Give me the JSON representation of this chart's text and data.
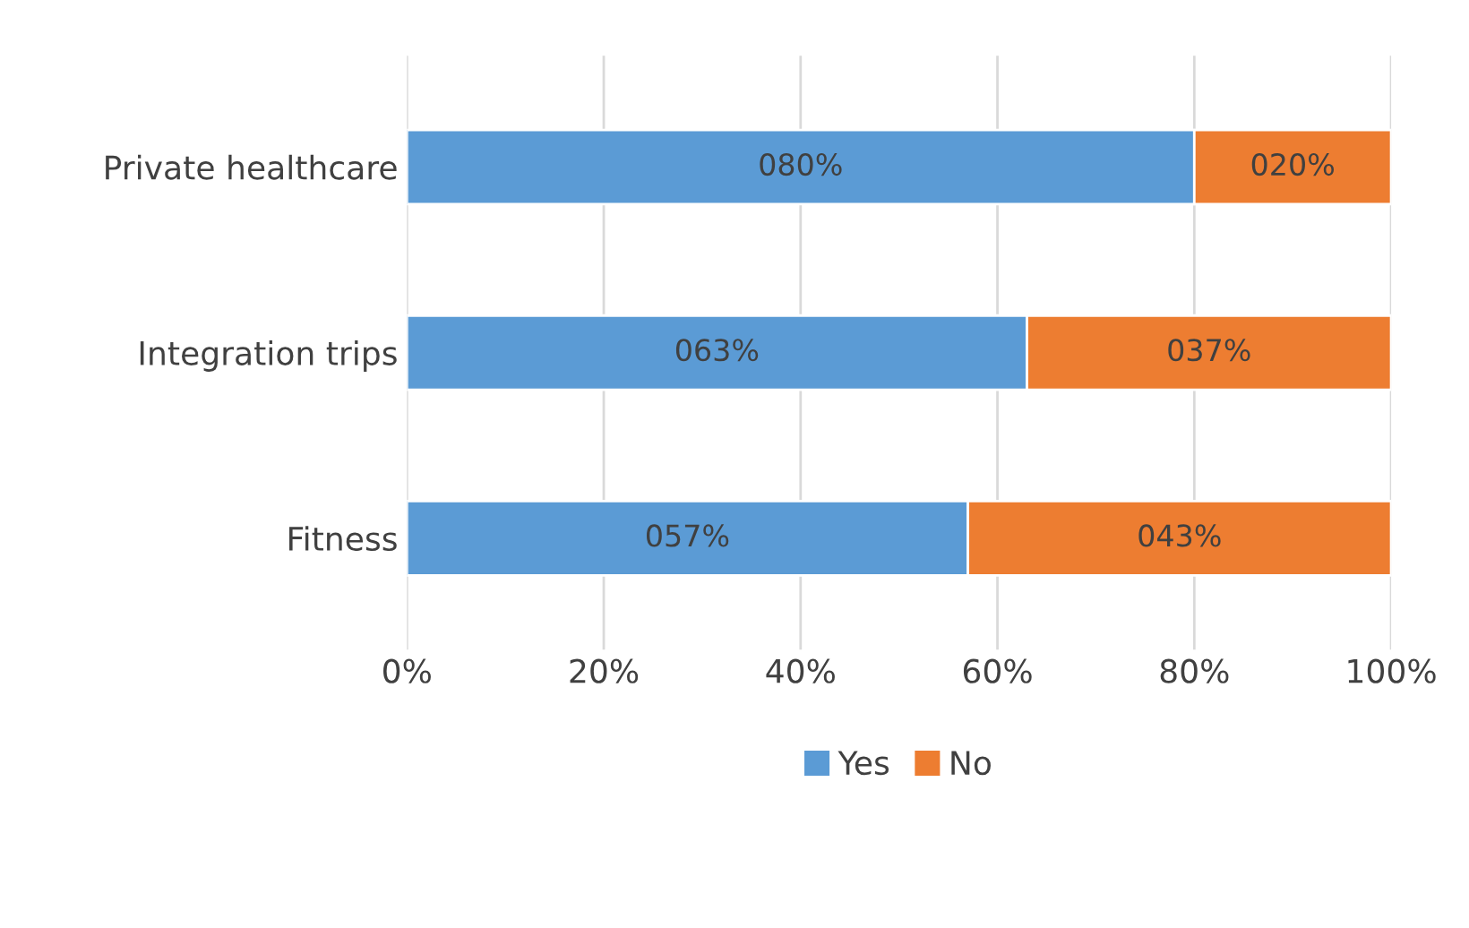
{
  "chart_data": {
    "type": "bar",
    "orientation": "horizontal",
    "stacked": true,
    "categories": [
      "Private healthcare",
      "Integration trips",
      "Fitness"
    ],
    "series": [
      {
        "name": "Yes",
        "color": "#5b9bd5",
        "values": [
          80,
          63,
          57
        ],
        "value_labels": [
          "080%",
          "063%",
          "057%"
        ]
      },
      {
        "name": "No",
        "color": "#ed7d31",
        "values": [
          20,
          37,
          43
        ],
        "value_labels": [
          "020%",
          "037%",
          "043%"
        ]
      }
    ],
    "xlim": [
      0,
      100
    ],
    "xticks": [
      {
        "value": 0,
        "label": "0%"
      },
      {
        "value": 20,
        "label": "20%"
      },
      {
        "value": 40,
        "label": "40%"
      },
      {
        "value": 60,
        "label": "60%"
      },
      {
        "value": 80,
        "label": "80%"
      },
      {
        "value": 100,
        "label": "100%"
      }
    ],
    "grid": "x",
    "legend": "bottom"
  }
}
